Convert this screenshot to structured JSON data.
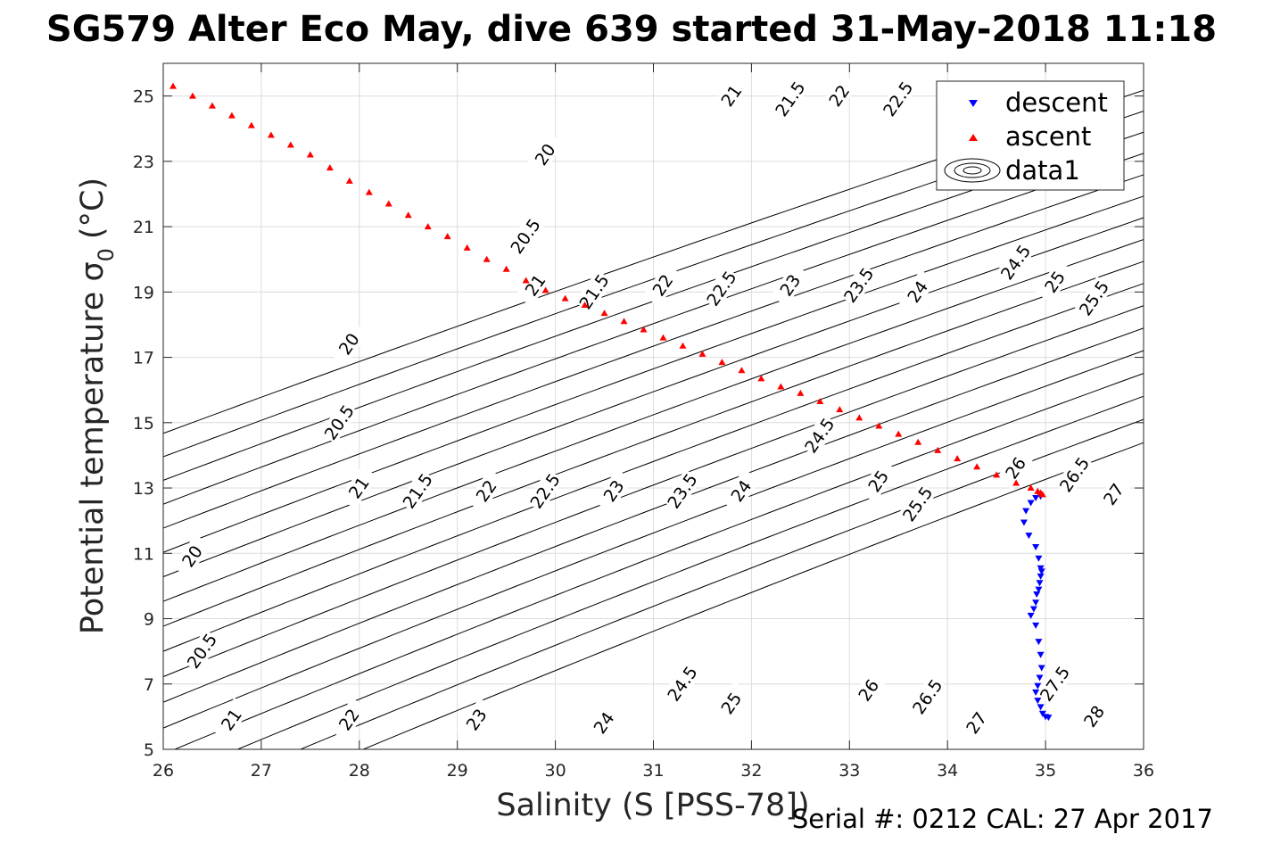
{
  "chart_data": {
    "type": "scatter",
    "title": "SG579 Alter Eco May, dive 639 started 31-May-2018 11:18",
    "xlabel": "Salinity (S [PSS-78])",
    "ylabel_main": "Potential temperature σ",
    "ylabel_sub": "0",
    "ylabel_unit": "(°C)",
    "xlim": [
      26,
      36
    ],
    "ylim": [
      5,
      26
    ],
    "x_ticks": [
      "26",
      "27",
      "28",
      "29",
      "30",
      "31",
      "32",
      "33",
      "34",
      "35",
      "36"
    ],
    "y_ticks": [
      "5",
      "7",
      "9",
      "11",
      "13",
      "15",
      "17",
      "19",
      "21",
      "23",
      "25"
    ],
    "grid": true,
    "legend_position": "top-right",
    "legend": [
      "descent",
      "ascent",
      "data1"
    ],
    "footer": "Serial #: 0212  CAL: 27 Apr 2017",
    "contour_levels": [
      20,
      20.5,
      21,
      21.5,
      22,
      22.5,
      23,
      23.5,
      24,
      24.5,
      25,
      25.5,
      26,
      26.5,
      27,
      27.5,
      28
    ],
    "contour_labels": [
      {
        "text": "20",
        "s": 29.9,
        "t": 23.2
      },
      {
        "text": "21",
        "s": 31.8,
        "t": 25.0
      },
      {
        "text": "21.5",
        "s": 32.4,
        "t": 24.9
      },
      {
        "text": "22",
        "s": 32.9,
        "t": 25.0
      },
      {
        "text": "22.5",
        "s": 33.5,
        "t": 24.9
      },
      {
        "text": "20.5",
        "s": 29.7,
        "t": 20.7
      },
      {
        "text": "21",
        "s": 29.8,
        "t": 19.2
      },
      {
        "text": "21.5",
        "s": 30.4,
        "t": 19.0
      },
      {
        "text": "22",
        "s": 31.1,
        "t": 19.2
      },
      {
        "text": "22.5",
        "s": 31.7,
        "t": 19.1
      },
      {
        "text": "23",
        "s": 32.4,
        "t": 19.2
      },
      {
        "text": "23.5",
        "s": 33.1,
        "t": 19.2
      },
      {
        "text": "24",
        "s": 33.7,
        "t": 19.0
      },
      {
        "text": "24.5",
        "s": 34.7,
        "t": 19.9
      },
      {
        "text": "25",
        "s": 35.1,
        "t": 19.3
      },
      {
        "text": "25.5",
        "s": 35.5,
        "t": 18.8
      },
      {
        "text": "20",
        "s": 27.9,
        "t": 17.4
      },
      {
        "text": "20.5",
        "s": 27.8,
        "t": 15.0
      },
      {
        "text": "21",
        "s": 28.0,
        "t": 13.0
      },
      {
        "text": "21.5",
        "s": 28.6,
        "t": 12.9
      },
      {
        "text": "22",
        "s": 29.3,
        "t": 12.9
      },
      {
        "text": "22.5",
        "s": 29.9,
        "t": 12.9
      },
      {
        "text": "23",
        "s": 30.6,
        "t": 12.9
      },
      {
        "text": "23.5",
        "s": 31.3,
        "t": 12.9
      },
      {
        "text": "24",
        "s": 31.9,
        "t": 12.9
      },
      {
        "text": "24.5",
        "s": 32.7,
        "t": 14.6
      },
      {
        "text": "25",
        "s": 33.3,
        "t": 13.2
      },
      {
        "text": "25.5",
        "s": 33.7,
        "t": 12.5
      },
      {
        "text": "26",
        "s": 34.7,
        "t": 13.6
      },
      {
        "text": "26.5",
        "s": 35.3,
        "t": 13.4
      },
      {
        "text": "27",
        "s": 35.7,
        "t": 12.8
      },
      {
        "text": "20",
        "s": 26.3,
        "t": 10.9
      },
      {
        "text": "20.5",
        "s": 26.4,
        "t": 8.0
      },
      {
        "text": "21",
        "s": 26.7,
        "t": 5.9
      },
      {
        "text": "22",
        "s": 27.9,
        "t": 5.9
      },
      {
        "text": "23",
        "s": 29.2,
        "t": 5.9
      },
      {
        "text": "24",
        "s": 30.5,
        "t": 5.8
      },
      {
        "text": "24.5",
        "s": 31.3,
        "t": 7.0
      },
      {
        "text": "25",
        "s": 31.8,
        "t": 6.4
      },
      {
        "text": "26",
        "s": 33.2,
        "t": 6.8
      },
      {
        "text": "26.5",
        "s": 33.8,
        "t": 6.6
      },
      {
        "text": "27",
        "s": 34.3,
        "t": 5.8
      },
      {
        "text": "27.5",
        "s": 35.1,
        "t": 7.0
      },
      {
        "text": "28",
        "s": 35.5,
        "t": 6.0
      }
    ],
    "series": [
      {
        "name": "descent",
        "color": "#0000ff",
        "marker": "triangle-down",
        "points": [
          [
            34.95,
            12.75
          ],
          [
            34.9,
            12.7
          ],
          [
            34.85,
            12.55
          ],
          [
            34.8,
            12.3
          ],
          [
            34.78,
            11.95
          ],
          [
            34.83,
            11.55
          ],
          [
            34.9,
            11.2
          ],
          [
            34.93,
            10.85
          ],
          [
            34.95,
            10.55
          ],
          [
            34.96,
            10.45
          ],
          [
            34.95,
            10.3
          ],
          [
            34.94,
            10.1
          ],
          [
            34.93,
            9.9
          ],
          [
            34.91,
            9.75
          ],
          [
            34.9,
            9.5
          ],
          [
            34.88,
            9.3
          ],
          [
            34.85,
            9.1
          ],
          [
            34.9,
            8.8
          ],
          [
            34.93,
            8.3
          ],
          [
            34.95,
            7.9
          ],
          [
            34.96,
            7.5
          ],
          [
            34.94,
            7.2
          ],
          [
            34.92,
            6.95
          ],
          [
            34.9,
            6.75
          ],
          [
            34.92,
            6.5
          ],
          [
            34.95,
            6.3
          ],
          [
            34.97,
            6.1
          ],
          [
            35.0,
            6.0
          ],
          [
            35.03,
            5.98
          ]
        ]
      },
      {
        "name": "ascent",
        "color": "#ff0000",
        "marker": "triangle-up",
        "points": [
          [
            26.1,
            25.3
          ],
          [
            26.3,
            25.0
          ],
          [
            26.5,
            24.7
          ],
          [
            26.7,
            24.4
          ],
          [
            26.9,
            24.1
          ],
          [
            27.1,
            23.8
          ],
          [
            27.3,
            23.5
          ],
          [
            27.5,
            23.2
          ],
          [
            27.7,
            22.8
          ],
          [
            27.9,
            22.4
          ],
          [
            28.1,
            22.05
          ],
          [
            28.3,
            21.7
          ],
          [
            28.5,
            21.35
          ],
          [
            28.7,
            21.0
          ],
          [
            28.9,
            20.7
          ],
          [
            29.1,
            20.35
          ],
          [
            29.3,
            20.0
          ],
          [
            29.5,
            19.7
          ],
          [
            29.7,
            19.35
          ],
          [
            29.9,
            19.05
          ],
          [
            30.1,
            18.8
          ],
          [
            30.3,
            18.6
          ],
          [
            30.5,
            18.35
          ],
          [
            30.7,
            18.1
          ],
          [
            30.9,
            17.85
          ],
          [
            31.1,
            17.6
          ],
          [
            31.3,
            17.35
          ],
          [
            31.5,
            17.1
          ],
          [
            31.7,
            16.85
          ],
          [
            31.9,
            16.6
          ],
          [
            32.1,
            16.35
          ],
          [
            32.3,
            16.1
          ],
          [
            32.5,
            15.9
          ],
          [
            32.7,
            15.65
          ],
          [
            32.9,
            15.4
          ],
          [
            33.1,
            15.15
          ],
          [
            33.3,
            14.9
          ],
          [
            33.5,
            14.65
          ],
          [
            33.7,
            14.4
          ],
          [
            33.9,
            14.15
          ],
          [
            34.1,
            13.9
          ],
          [
            34.3,
            13.65
          ],
          [
            34.5,
            13.4
          ],
          [
            34.7,
            13.15
          ],
          [
            34.85,
            13.0
          ],
          [
            34.92,
            12.9
          ],
          [
            34.95,
            12.85
          ],
          [
            34.97,
            12.8
          ]
        ]
      }
    ]
  }
}
